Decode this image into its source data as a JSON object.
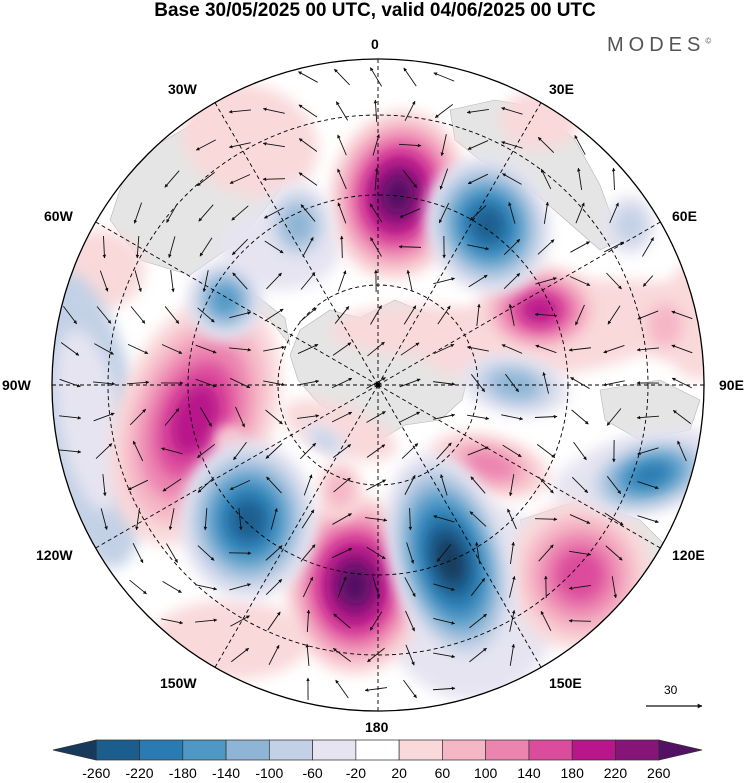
{
  "title": "Base 30/05/2025 00 UTC, valid 04/06/2025 00 UTC",
  "brand": "MODES",
  "brand_mark": "©",
  "longitude_labels": {
    "lon_0": "0",
    "lon_30e": "30E",
    "lon_60e": "60E",
    "lon_90e": "90E",
    "lon_120e": "120E",
    "lon_150e": "150E",
    "lon_180": "180",
    "lon_150w": "150W",
    "lon_120w": "120W",
    "lon_90w": "90W",
    "lon_60w": "60W",
    "lon_30w": "30W"
  },
  "reference_vector": {
    "value": "30"
  },
  "colorbar": {
    "ticks": [
      "-260",
      "-220",
      "-180",
      "-140",
      "-100",
      "-60",
      "-20",
      "20",
      "60",
      "100",
      "140",
      "180",
      "220",
      "260"
    ],
    "colors": [
      "#173a5c",
      "#1b5d8d",
      "#2a7bb2",
      "#4f98c6",
      "#8eb5d6",
      "#c3d1e6",
      "#e6e4f1",
      "#ffffff",
      "#f9d9da",
      "#f5b6c5",
      "#ec84b0",
      "#dc4c9c",
      "#b8168a",
      "#871478",
      "#521164"
    ],
    "extends": "both"
  },
  "colors": {
    "land": "#e5e5e5",
    "grid": "#000000",
    "arrow": "#111111"
  }
}
